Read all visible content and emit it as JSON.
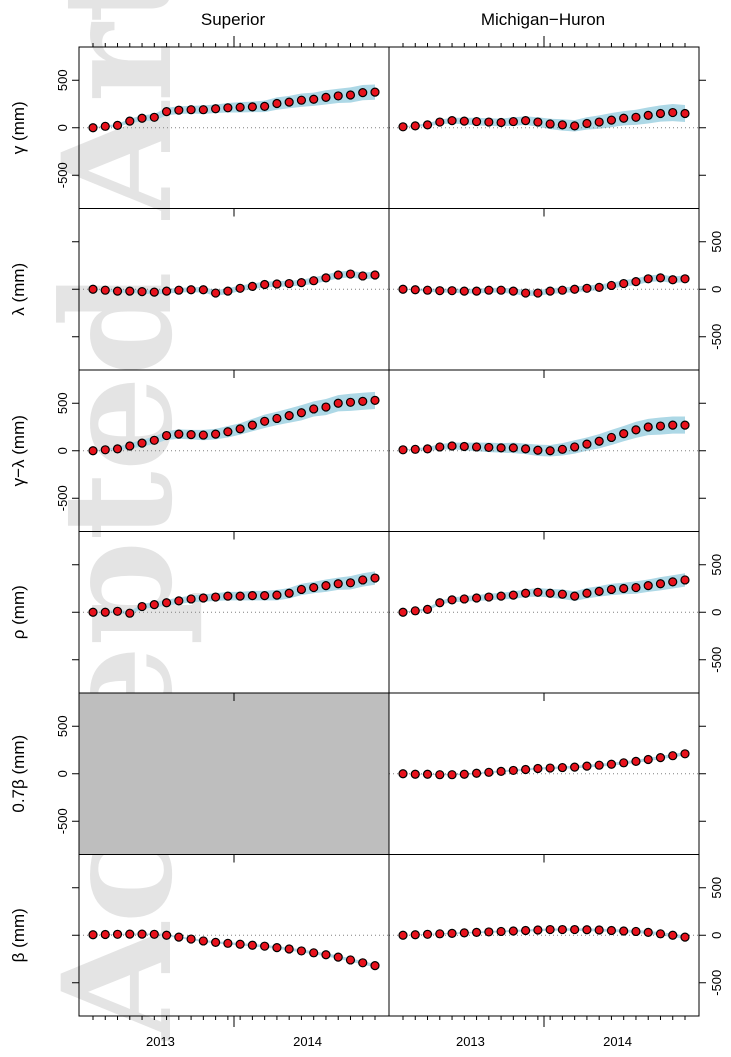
{
  "columns": [
    "Superior",
    "Michigan−Huron"
  ],
  "x_tick_labels": [
    "2013",
    "2014"
  ],
  "watermark": "Accepted Article",
  "colors": {
    "point_fill": "#e8121c",
    "point_stroke": "#000000",
    "band": "#add8e6",
    "missing_panel": "#bebebe",
    "zero_line": "#808080"
  },
  "chart_data": {
    "type": "scatter",
    "n_months": 24,
    "x_months": [
      "2013-01",
      "2013-02",
      "2013-03",
      "2013-04",
      "2013-05",
      "2013-06",
      "2013-07",
      "2013-08",
      "2013-09",
      "2013-10",
      "2013-11",
      "2013-12",
      "2014-01",
      "2014-02",
      "2014-03",
      "2014-04",
      "2014-05",
      "2014-06",
      "2014-07",
      "2014-08",
      "2014-09",
      "2014-10",
      "2014-11",
      "2014-12"
    ],
    "ylim": [
      -850,
      850
    ],
    "rows": [
      {
        "ylabel": "γ (mm)",
        "yticks": [
          "-500",
          "0",
          "500"
        ],
        "tick_side": "left",
        "panels": [
          {
            "values": [
              0,
              15,
              25,
              70,
              100,
              110,
              170,
              185,
              190,
              190,
              200,
              210,
              215,
              220,
              225,
              255,
              270,
              290,
              300,
              320,
              335,
              345,
              370,
              375
            ],
            "band": [
              0,
              10,
              15,
              25,
              30,
              35,
              40,
              40,
              40,
              45,
              45,
              50,
              55,
              55,
              60,
              65,
              65,
              70,
              70,
              75,
              75,
              80,
              80,
              80
            ]
          },
          {
            "values": [
              10,
              20,
              30,
              60,
              75,
              70,
              65,
              60,
              55,
              65,
              75,
              60,
              40,
              30,
              20,
              45,
              60,
              80,
              100,
              110,
              130,
              150,
              160,
              150
            ],
            "band": [
              0,
              10,
              15,
              25,
              30,
              35,
              40,
              40,
              40,
              45,
              45,
              50,
              55,
              60,
              60,
              65,
              70,
              75,
              75,
              80,
              85,
              85,
              90,
              90
            ]
          }
        ]
      },
      {
        "ylabel": "λ (mm)",
        "yticks": [
          "-500",
          "0",
          "500"
        ],
        "tick_side": "right",
        "panels": [
          {
            "values": [
              0,
              -10,
              -20,
              -20,
              -25,
              -30,
              -20,
              -10,
              -5,
              -5,
              -40,
              -20,
              10,
              30,
              50,
              55,
              60,
              70,
              90,
              120,
              150,
              160,
              140,
              150
            ],
            "band": [
              0,
              10,
              15,
              20,
              20,
              25,
              25,
              25,
              25,
              30,
              30,
              30,
              30,
              30,
              30,
              30,
              30,
              30,
              35,
              35,
              35,
              35,
              35,
              35
            ]
          },
          {
            "values": [
              0,
              -5,
              -10,
              -15,
              -15,
              -20,
              -20,
              -10,
              -10,
              -20,
              -40,
              -40,
              -20,
              -10,
              0,
              10,
              20,
              40,
              60,
              80,
              110,
              120,
              100,
              110
            ],
            "band": [
              0,
              10,
              15,
              20,
              20,
              25,
              25,
              25,
              25,
              30,
              30,
              30,
              30,
              30,
              30,
              30,
              30,
              30,
              35,
              35,
              35,
              35,
              35,
              35
            ]
          }
        ]
      },
      {
        "ylabel": "γ−λ (mm)",
        "yticks": [
          "-500",
          "0",
          "500"
        ],
        "tick_side": "left",
        "panels": [
          {
            "values": [
              0,
              10,
              20,
              50,
              80,
              110,
              160,
              175,
              170,
              165,
              175,
              200,
              230,
              270,
              310,
              340,
              370,
              400,
              440,
              460,
              500,
              510,
              520,
              530
            ],
            "band": [
              0,
              10,
              20,
              30,
              35,
              40,
              45,
              50,
              50,
              55,
              55,
              60,
              60,
              65,
              70,
              70,
              75,
              80,
              80,
              85,
              85,
              90,
              90,
              90
            ]
          },
          {
            "values": [
              10,
              15,
              20,
              40,
              50,
              45,
              40,
              35,
              30,
              30,
              20,
              5,
              0,
              15,
              40,
              70,
              100,
              140,
              180,
              220,
              250,
              260,
              270,
              270
            ],
            "band": [
              0,
              10,
              20,
              30,
              35,
              40,
              45,
              50,
              50,
              55,
              55,
              60,
              60,
              65,
              70,
              70,
              75,
              80,
              80,
              85,
              85,
              90,
              90,
              90
            ]
          }
        ]
      },
      {
        "ylabel": "ρ (mm)",
        "yticks": [
          "-500",
          "0",
          "500"
        ],
        "tick_side": "right",
        "panels": [
          {
            "values": [
              0,
              0,
              10,
              -10,
              60,
              80,
              100,
              120,
              140,
              150,
              160,
              170,
              170,
              175,
              175,
              180,
              200,
              240,
              260,
              280,
              300,
              310,
              340,
              360
            ],
            "band": [
              0,
              10,
              15,
              20,
              25,
              30,
              30,
              35,
              35,
              40,
              40,
              45,
              45,
              50,
              50,
              55,
              55,
              60,
              60,
              65,
              65,
              70,
              70,
              70
            ]
          },
          {
            "values": [
              0,
              15,
              30,
              100,
              130,
              140,
              150,
              160,
              170,
              180,
              200,
              210,
              200,
              190,
              170,
              200,
              220,
              240,
              250,
              260,
              280,
              300,
              320,
              340
            ],
            "band": [
              0,
              10,
              15,
              20,
              25,
              30,
              30,
              35,
              35,
              40,
              40,
              45,
              45,
              50,
              50,
              55,
              55,
              60,
              60,
              65,
              65,
              70,
              70,
              70
            ]
          }
        ]
      },
      {
        "ylabel": "0.7β (mm)",
        "yticks": [
          "-500",
          "0",
          "500"
        ],
        "tick_side": "left",
        "panels": [
          {
            "missing": true
          },
          {
            "values": [
              0,
              -5,
              -5,
              -10,
              -10,
              -5,
              5,
              15,
              25,
              35,
              45,
              55,
              60,
              65,
              70,
              80,
              90,
              100,
              115,
              130,
              150,
              170,
              190,
              210
            ],
            "band": [
              0,
              3,
              5,
              6,
              7,
              8,
              9,
              10,
              10,
              11,
              12,
              12,
              13,
              13,
              14,
              14,
              15,
              15,
              16,
              16,
              17,
              17,
              18,
              18
            ]
          }
        ]
      },
      {
        "ylabel": "β (mm)",
        "yticks": [
          "-500",
          "0",
          "500"
        ],
        "tick_side": "right",
        "panels": [
          {
            "values": [
              5,
              8,
              10,
              12,
              12,
              10,
              0,
              -20,
              -40,
              -60,
              -75,
              -85,
              -95,
              -105,
              -115,
              -130,
              -145,
              -165,
              -185,
              -205,
              -230,
              -260,
              -290,
              -320
            ],
            "band": [
              0,
              3,
              5,
              6,
              7,
              8,
              9,
              10,
              10,
              11,
              12,
              12,
              13,
              13,
              14,
              14,
              15,
              15,
              16,
              16,
              17,
              17,
              18,
              18
            ]
          },
          {
            "values": [
              0,
              5,
              10,
              15,
              20,
              25,
              30,
              35,
              40,
              45,
              50,
              55,
              60,
              60,
              60,
              58,
              55,
              50,
              45,
              40,
              30,
              15,
              0,
              -20
            ],
            "band": [
              0,
              3,
              5,
              6,
              7,
              8,
              9,
              10,
              10,
              11,
              12,
              12,
              13,
              13,
              14,
              14,
              15,
              15,
              16,
              16,
              17,
              17,
              18,
              18
            ]
          }
        ]
      }
    ]
  }
}
